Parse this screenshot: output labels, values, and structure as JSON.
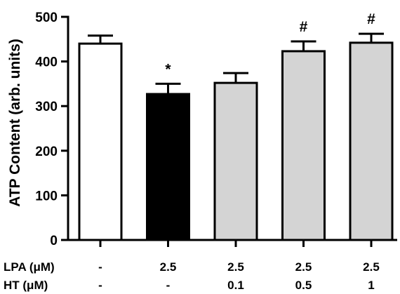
{
  "chart_data": {
    "type": "bar",
    "ylabel": "ATP Content (arb. units)",
    "ylim": [
      0,
      500
    ],
    "yticks": [
      0,
      100,
      200,
      300,
      400,
      500
    ],
    "grid": false,
    "legend": "none",
    "bars": [
      {
        "value": 440,
        "error": 18,
        "fill": "#ffffff",
        "marker": ""
      },
      {
        "value": 327,
        "error": 23,
        "fill": "#000000",
        "marker": "*"
      },
      {
        "value": 352,
        "error": 22,
        "fill": "#d4d4d4",
        "marker": ""
      },
      {
        "value": 423,
        "error": 22,
        "fill": "#d4d4d4",
        "marker": "#"
      },
      {
        "value": 442,
        "error": 20,
        "fill": "#d4d4d4",
        "marker": "#"
      }
    ],
    "conditions": [
      {
        "label": "LPA (μM)",
        "values": [
          "-",
          "2.5",
          "2.5",
          "2.5",
          "2.5"
        ]
      },
      {
        "label": "HT (μM)",
        "values": [
          "-",
          "-",
          "0.1",
          "0.5",
          "1"
        ]
      }
    ]
  }
}
